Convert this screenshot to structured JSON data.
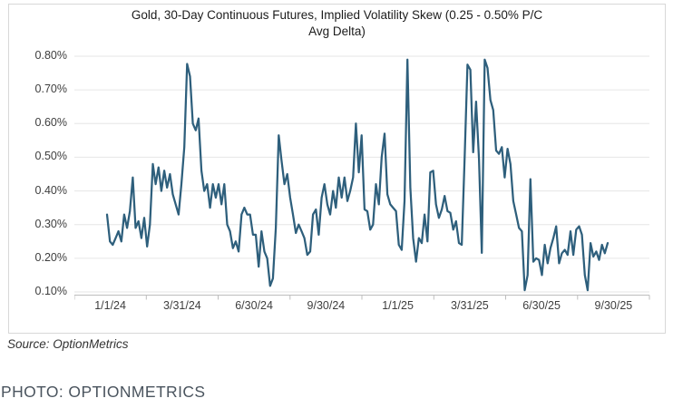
{
  "page": {
    "photo_credit": "PHOTO: OPTIONMETRICS"
  },
  "chart_card": {
    "title_line1": "Gold, 30-Day Continuous Futures, Implied Volatility Skew (0.25 - 0.50% P/C",
    "title_line2": "Avg Delta)",
    "source": "Source: OptionMetrics"
  },
  "chart_data": {
    "type": "line",
    "title": "Gold, 30-Day Continuous Futures, Implied Volatility Skew (0.25 - 0.50% P/C Avg Delta)",
    "xlabel": "",
    "ylabel": "",
    "legend": "none",
    "grid": "horizontal",
    "line_color": "#2e5f7c",
    "ylim": [
      0.1,
      0.8
    ],
    "y_tick_labels": [
      "0.80%",
      "0.70%",
      "0.60%",
      "0.50%",
      "0.40%",
      "0.30%",
      "0.20%",
      "0.10%"
    ],
    "x_tick_labels": [
      "1/1/24",
      "3/31/24",
      "6/30/24",
      "9/30/24",
      "1/1/25",
      "3/31/25",
      "6/30/25",
      "9/30/25"
    ],
    "x_first_point_label": "1/1/24",
    "x_last_point_label": "9/30/25",
    "values_unit": "percent",
    "values_percent": [
      0.33,
      0.25,
      0.24,
      0.26,
      0.28,
      0.25,
      0.33,
      0.29,
      0.34,
      0.44,
      0.29,
      0.31,
      0.26,
      0.32,
      0.235,
      0.3,
      0.48,
      0.42,
      0.47,
      0.4,
      0.46,
      0.41,
      0.45,
      0.39,
      0.36,
      0.33,
      0.42,
      0.53,
      0.777,
      0.74,
      0.6,
      0.58,
      0.615,
      0.46,
      0.4,
      0.42,
      0.35,
      0.42,
      0.38,
      0.42,
      0.36,
      0.42,
      0.3,
      0.28,
      0.23,
      0.25,
      0.22,
      0.33,
      0.35,
      0.33,
      0.33,
      0.27,
      0.27,
      0.175,
      0.28,
      0.22,
      0.2,
      0.118,
      0.14,
      0.29,
      0.565,
      0.49,
      0.42,
      0.45,
      0.38,
      0.33,
      0.275,
      0.3,
      0.28,
      0.26,
      0.21,
      0.22,
      0.33,
      0.345,
      0.27,
      0.38,
      0.42,
      0.36,
      0.33,
      0.4,
      0.35,
      0.44,
      0.38,
      0.44,
      0.37,
      0.4,
      0.44,
      0.6,
      0.455,
      0.565,
      0.345,
      0.34,
      0.285,
      0.3,
      0.42,
      0.36,
      0.5,
      0.57,
      0.39,
      0.36,
      0.35,
      0.34,
      0.24,
      0.225,
      0.37,
      0.79,
      0.41,
      0.26,
      0.19,
      0.26,
      0.245,
      0.33,
      0.25,
      0.455,
      0.46,
      0.36,
      0.32,
      0.345,
      0.385,
      0.34,
      0.335,
      0.285,
      0.31,
      0.245,
      0.24,
      0.5,
      0.775,
      0.76,
      0.515,
      0.665,
      0.495,
      0.216,
      0.79,
      0.765,
      0.67,
      0.64,
      0.52,
      0.51,
      0.53,
      0.44,
      0.525,
      0.48,
      0.37,
      0.33,
      0.29,
      0.28,
      0.105,
      0.15,
      0.435,
      0.19,
      0.2,
      0.195,
      0.15,
      0.24,
      0.185,
      0.23,
      0.26,
      0.295,
      0.185,
      0.215,
      0.225,
      0.21,
      0.28,
      0.21,
      0.285,
      0.295,
      0.27,
      0.15,
      0.105,
      0.245,
      0.205,
      0.22,
      0.195,
      0.24,
      0.215,
      0.245
    ]
  }
}
